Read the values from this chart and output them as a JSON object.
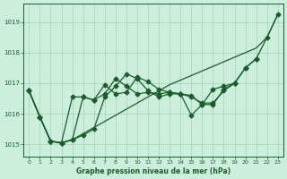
{
  "background_color": "#cceedd",
  "grid_color": "#aaccbb",
  "line_color": "#1a5c2a",
  "x": [
    0,
    1,
    2,
    3,
    4,
    5,
    6,
    7,
    8,
    9,
    10,
    11,
    12,
    13,
    14,
    15,
    16,
    17,
    18,
    19,
    20,
    21,
    22,
    23
  ],
  "series1": [
    1016.75,
    1015.9,
    1015.1,
    1015.05,
    1015.15,
    1015.35,
    1015.55,
    1015.75,
    1015.95,
    1016.15,
    1016.35,
    1016.55,
    1016.75,
    1016.95,
    1017.1,
    1017.25,
    1017.4,
    1017.55,
    1017.7,
    1017.85,
    1018.0,
    1018.15,
    1018.5,
    1019.25
  ],
  "series2": [
    1016.75,
    1015.9,
    1015.1,
    1015.05,
    1016.55,
    1016.55,
    1016.45,
    1016.65,
    1017.15,
    1016.9,
    1016.65,
    1016.7,
    1016.65,
    1016.7,
    1016.65,
    1016.6,
    1016.3,
    1016.8,
    1016.9,
    1017.0,
    null,
    null,
    null,
    null
  ],
  "series3": [
    1016.75,
    1015.9,
    1015.1,
    1015.05,
    1015.15,
    1016.55,
    1016.45,
    1016.95,
    1016.65,
    1016.7,
    1017.2,
    1017.05,
    1016.8,
    1016.7,
    1016.65,
    1015.95,
    1016.3,
    1016.3,
    1016.8,
    1017.0,
    1017.5,
    1017.8,
    null,
    null
  ],
  "series4": [
    1016.75,
    1015.9,
    1015.1,
    1015.05,
    1015.15,
    1015.3,
    1015.5,
    1016.55,
    1016.9,
    1017.3,
    1017.15,
    1016.75,
    1016.55,
    1016.65,
    1016.65,
    1016.55,
    1016.35,
    1016.35,
    1016.75,
    1017.0,
    1017.5,
    1017.8,
    1018.5,
    1019.25
  ],
  "ylim": [
    1014.6,
    1019.6
  ],
  "yticks": [
    1015,
    1016,
    1017,
    1018,
    1019
  ],
  "xticks": [
    0,
    1,
    2,
    3,
    4,
    5,
    6,
    7,
    8,
    9,
    10,
    11,
    12,
    13,
    14,
    15,
    16,
    17,
    18,
    19,
    20,
    21,
    22,
    23
  ]
}
